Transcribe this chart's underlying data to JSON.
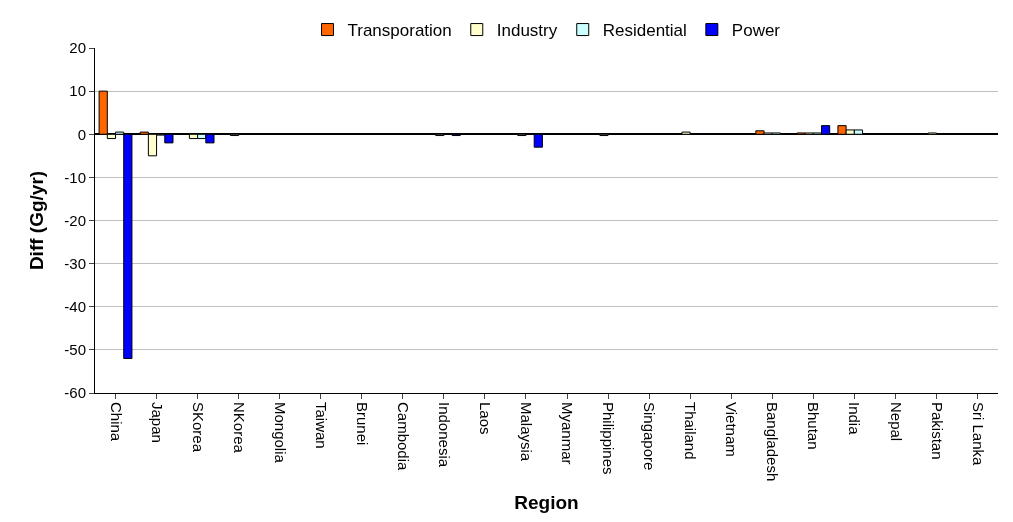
{
  "chart_data": {
    "type": "bar",
    "xlabel": "Region",
    "ylabel": "Diff (Gg/yr)",
    "categories": [
      "China",
      "Japan",
      "SKorea",
      "NKorea",
      "Mongolia",
      "Taiwan",
      "Brunei",
      "Cambodia",
      "Indonesia",
      "Laos",
      "Malaysia",
      "Myanmar",
      "Philippines",
      "Singapore",
      "Thailand",
      "Vietnam",
      "Bangladesh",
      "Bhutan",
      "India",
      "Nepal",
      "Pakistan",
      "Sri Lanka"
    ],
    "series": [
      {
        "name": "Transporation",
        "color": "#ff6600",
        "values": [
          10,
          0.5,
          null,
          null,
          null,
          null,
          null,
          null,
          null,
          null,
          null,
          null,
          null,
          null,
          null,
          null,
          0.8,
          0.3,
          2,
          null,
          null,
          null
        ]
      },
      {
        "name": "Industry",
        "color": "#ffffcc",
        "values": [
          -1,
          -5,
          -1,
          -0.3,
          null,
          null,
          null,
          null,
          -0.3,
          null,
          -0.3,
          null,
          -0.3,
          null,
          0.5,
          null,
          0.3,
          0.3,
          1,
          null,
          0.3,
          null
        ]
      },
      {
        "name": "Residential",
        "color": "#ccffff",
        "values": [
          0.5,
          -0.2,
          -1,
          null,
          null,
          null,
          null,
          null,
          null,
          null,
          null,
          null,
          null,
          null,
          null,
          null,
          0.3,
          0.3,
          1,
          null,
          null,
          null
        ]
      },
      {
        "name": "Power",
        "color": "#0000ff",
        "values": [
          -52,
          -2,
          -2,
          null,
          null,
          null,
          null,
          null,
          -0.3,
          null,
          -3,
          null,
          null,
          null,
          null,
          null,
          null,
          2,
          null,
          null,
          null,
          null
        ]
      }
    ],
    "ylim": [
      -60,
      20
    ],
    "yticks": [
      -60,
      -50,
      -40,
      -30,
      -20,
      -10,
      0,
      10,
      20
    ],
    "grid": "y",
    "legend": "top"
  }
}
